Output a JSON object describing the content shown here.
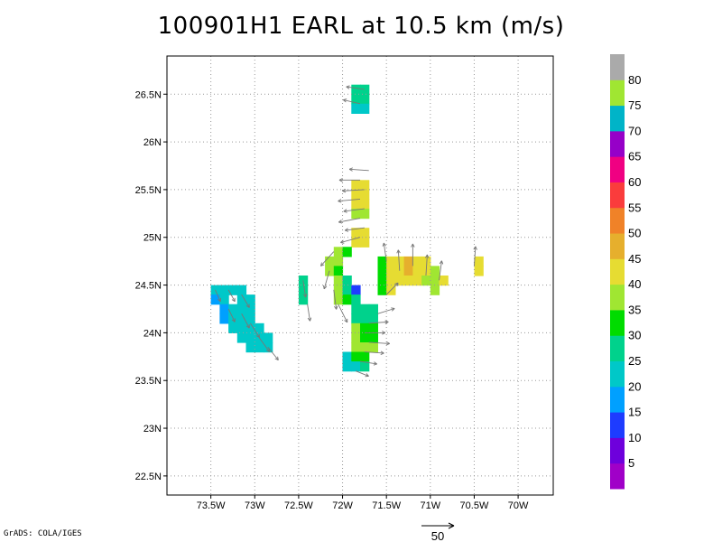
{
  "title": "100901H1 EARL at 10.5 km (m/s)",
  "credit": "GrADS: COLA/IGES",
  "map": {
    "lon_range": [
      -74.0,
      -69.6
    ],
    "lat_range": [
      22.3,
      26.9
    ],
    "x_ticks": [
      {
        "v": -73.5,
        "label": "73.5W"
      },
      {
        "v": -73.0,
        "label": "73W"
      },
      {
        "v": -72.5,
        "label": "72.5W"
      },
      {
        "v": -72.0,
        "label": "72W"
      },
      {
        "v": -71.5,
        "label": "71.5W"
      },
      {
        "v": -71.0,
        "label": "71W"
      },
      {
        "v": -70.5,
        "label": "70.5W"
      },
      {
        "v": -70.0,
        "label": "70W"
      }
    ],
    "y_ticks": [
      {
        "v": 22.5,
        "label": "22.5N"
      },
      {
        "v": 23.0,
        "label": "23N"
      },
      {
        "v": 23.5,
        "label": "23.5N"
      },
      {
        "v": 24.0,
        "label": "24N"
      },
      {
        "v": 24.5,
        "label": "24.5N"
      },
      {
        "v": 25.0,
        "label": "25N"
      },
      {
        "v": 25.5,
        "label": "25.5N"
      },
      {
        "v": 26.0,
        "label": "26N"
      },
      {
        "v": 26.5,
        "label": "26.5N"
      }
    ],
    "grid": "dotted"
  },
  "colorbar": {
    "colors": [
      "#a000c8",
      "#6e00dc",
      "#1e3cff",
      "#00a0ff",
      "#00c8c8",
      "#00d28c",
      "#00dc00",
      "#a0e632",
      "#e6dc32",
      "#e6af2d",
      "#f08228",
      "#fa3c3c",
      "#f00082",
      "#9600c8",
      "#00b4c8",
      "#a0e632",
      "#aaaaaa"
    ],
    "labels": [
      "5",
      "10",
      "15",
      "20",
      "25",
      "30",
      "35",
      "40",
      "45",
      "50",
      "55",
      "60",
      "65",
      "70",
      "75",
      "80"
    ]
  },
  "scale_vector": {
    "label": "50"
  },
  "wind_speed_cells": [
    {
      "lon": -73.45,
      "lat": 24.45,
      "spd": 20
    },
    {
      "lon": -73.35,
      "lat": 24.45,
      "spd": 20
    },
    {
      "lon": -73.25,
      "lat": 24.45,
      "spd": 20
    },
    {
      "lon": -73.15,
      "lat": 24.45,
      "spd": 20
    },
    {
      "lon": -73.45,
      "lat": 24.35,
      "spd": 15
    },
    {
      "lon": -73.35,
      "lat": 24.35,
      "spd": 20
    },
    {
      "lon": -73.15,
      "lat": 24.35,
      "spd": 20
    },
    {
      "lon": -73.05,
      "lat": 24.35,
      "spd": 20
    },
    {
      "lon": -73.35,
      "lat": 24.25,
      "spd": 15
    },
    {
      "lon": -73.25,
      "lat": 24.25,
      "spd": 20
    },
    {
      "lon": -73.15,
      "lat": 24.25,
      "spd": 20
    },
    {
      "lon": -73.05,
      "lat": 24.25,
      "spd": 20
    },
    {
      "lon": -73.35,
      "lat": 24.15,
      "spd": 15
    },
    {
      "lon": -73.25,
      "lat": 24.15,
      "spd": 20
    },
    {
      "lon": -73.15,
      "lat": 24.15,
      "spd": 20
    },
    {
      "lon": -73.05,
      "lat": 24.15,
      "spd": 20
    },
    {
      "lon": -73.25,
      "lat": 24.05,
      "spd": 20
    },
    {
      "lon": -73.15,
      "lat": 24.05,
      "spd": 20
    },
    {
      "lon": -73.05,
      "lat": 24.05,
      "spd": 20
    },
    {
      "lon": -72.95,
      "lat": 24.05,
      "spd": 20
    },
    {
      "lon": -73.15,
      "lat": 23.95,
      "spd": 20
    },
    {
      "lon": -73.05,
      "lat": 23.95,
      "spd": 20
    },
    {
      "lon": -72.95,
      "lat": 23.95,
      "spd": 20
    },
    {
      "lon": -72.85,
      "lat": 23.95,
      "spd": 20
    },
    {
      "lon": -73.05,
      "lat": 23.85,
      "spd": 20
    },
    {
      "lon": -72.95,
      "lat": 23.85,
      "spd": 20
    },
    {
      "lon": -72.85,
      "lat": 23.85,
      "spd": 20
    },
    {
      "lon": -72.45,
      "lat": 24.55,
      "spd": 25
    },
    {
      "lon": -72.45,
      "lat": 24.45,
      "spd": 25
    },
    {
      "lon": -72.45,
      "lat": 24.35,
      "spd": 25
    },
    {
      "lon": -71.85,
      "lat": 26.55,
      "spd": 25
    },
    {
      "lon": -71.75,
      "lat": 26.55,
      "spd": 25
    },
    {
      "lon": -71.85,
      "lat": 26.45,
      "spd": 25
    },
    {
      "lon": -71.75,
      "lat": 26.45,
      "spd": 25
    },
    {
      "lon": -71.85,
      "lat": 26.35,
      "spd": 20
    },
    {
      "lon": -71.75,
      "lat": 26.35,
      "spd": 20
    },
    {
      "lon": -71.85,
      "lat": 25.55,
      "spd": 40
    },
    {
      "lon": -71.75,
      "lat": 25.55,
      "spd": 40
    },
    {
      "lon": -71.85,
      "lat": 25.45,
      "spd": 40
    },
    {
      "lon": -71.75,
      "lat": 25.45,
      "spd": 40
    },
    {
      "lon": -71.85,
      "lat": 25.35,
      "spd": 40
    },
    {
      "lon": -71.75,
      "lat": 25.35,
      "spd": 40
    },
    {
      "lon": -71.85,
      "lat": 25.25,
      "spd": 35
    },
    {
      "lon": -71.75,
      "lat": 25.25,
      "spd": 35
    },
    {
      "lon": -71.85,
      "lat": 25.05,
      "spd": 40
    },
    {
      "lon": -71.75,
      "lat": 25.05,
      "spd": 40
    },
    {
      "lon": -71.85,
      "lat": 24.95,
      "spd": 40
    },
    {
      "lon": -71.75,
      "lat": 24.95,
      "spd": 40
    },
    {
      "lon": -72.15,
      "lat": 24.75,
      "spd": 35
    },
    {
      "lon": -72.05,
      "lat": 24.75,
      "spd": 35
    },
    {
      "lon": -72.05,
      "lat": 24.85,
      "spd": 35
    },
    {
      "lon": -71.95,
      "lat": 24.85,
      "spd": 30
    },
    {
      "lon": -72.15,
      "lat": 24.65,
      "spd": 35
    },
    {
      "lon": -72.05,
      "lat": 24.65,
      "spd": 30
    },
    {
      "lon": -72.05,
      "lat": 24.55,
      "spd": 35
    },
    {
      "lon": -71.95,
      "lat": 24.55,
      "spd": 25
    },
    {
      "lon": -72.05,
      "lat": 24.45,
      "spd": 35
    },
    {
      "lon": -71.95,
      "lat": 24.45,
      "spd": 25
    },
    {
      "lon": -72.05,
      "lat": 24.35,
      "spd": 35
    },
    {
      "lon": -71.95,
      "lat": 24.35,
      "spd": 30
    },
    {
      "lon": -71.85,
      "lat": 24.45,
      "spd": 10
    },
    {
      "lon": -71.85,
      "lat": 24.35,
      "spd": 25
    },
    {
      "lon": -71.55,
      "lat": 24.75,
      "spd": 30
    },
    {
      "lon": -71.45,
      "lat": 24.75,
      "spd": 40
    },
    {
      "lon": -71.55,
      "lat": 24.65,
      "spd": 30
    },
    {
      "lon": -71.45,
      "lat": 24.65,
      "spd": 40
    },
    {
      "lon": -71.55,
      "lat": 24.55,
      "spd": 30
    },
    {
      "lon": -71.45,
      "lat": 24.55,
      "spd": 40
    },
    {
      "lon": -71.55,
      "lat": 24.45,
      "spd": 30
    },
    {
      "lon": -71.45,
      "lat": 24.45,
      "spd": 40
    },
    {
      "lon": -71.35,
      "lat": 24.75,
      "spd": 40
    },
    {
      "lon": -71.25,
      "lat": 24.75,
      "spd": 45
    },
    {
      "lon": -71.35,
      "lat": 24.65,
      "spd": 40
    },
    {
      "lon": -71.25,
      "lat": 24.65,
      "spd": 45
    },
    {
      "lon": -71.35,
      "lat": 24.55,
      "spd": 40
    },
    {
      "lon": -71.25,
      "lat": 24.55,
      "spd": 40
    },
    {
      "lon": -71.15,
      "lat": 24.75,
      "spd": 40
    },
    {
      "lon": -71.05,
      "lat": 24.75,
      "spd": 40
    },
    {
      "lon": -71.15,
      "lat": 24.65,
      "spd": 40
    },
    {
      "lon": -71.05,
      "lat": 24.65,
      "spd": 40
    },
    {
      "lon": -71.15,
      "lat": 24.55,
      "spd": 40
    },
    {
      "lon": -71.05,
      "lat": 24.55,
      "spd": 35
    },
    {
      "lon": -70.95,
      "lat": 24.65,
      "spd": 35
    },
    {
      "lon": -70.95,
      "lat": 24.55,
      "spd": 35
    },
    {
      "lon": -70.95,
      "lat": 24.45,
      "spd": 35
    },
    {
      "lon": -70.85,
      "lat": 24.55,
      "spd": 40
    },
    {
      "lon": -70.45,
      "lat": 24.75,
      "spd": 40
    },
    {
      "lon": -70.45,
      "lat": 24.65,
      "spd": 40
    },
    {
      "lon": -71.85,
      "lat": 24.25,
      "spd": 25
    },
    {
      "lon": -71.75,
      "lat": 24.25,
      "spd": 25
    },
    {
      "lon": -71.65,
      "lat": 24.25,
      "spd": 25
    },
    {
      "lon": -71.85,
      "lat": 24.15,
      "spd": 25
    },
    {
      "lon": -71.75,
      "lat": 24.15,
      "spd": 25
    },
    {
      "lon": -71.65,
      "lat": 24.15,
      "spd": 25
    },
    {
      "lon": -71.85,
      "lat": 24.05,
      "spd": 35
    },
    {
      "lon": -71.75,
      "lat": 24.05,
      "spd": 30
    },
    {
      "lon": -71.65,
      "lat": 24.05,
      "spd": 30
    },
    {
      "lon": -71.85,
      "lat": 23.95,
      "spd": 35
    },
    {
      "lon": -71.75,
      "lat": 23.95,
      "spd": 30
    },
    {
      "lon": -71.65,
      "lat": 23.95,
      "spd": 30
    },
    {
      "lon": -71.85,
      "lat": 23.85,
      "spd": 35
    },
    {
      "lon": -71.75,
      "lat": 23.85,
      "spd": 35
    },
    {
      "lon": -71.65,
      "lat": 23.85,
      "spd": 35
    },
    {
      "lon": -71.95,
      "lat": 23.75,
      "spd": 20
    },
    {
      "lon": -71.85,
      "lat": 23.75,
      "spd": 30
    },
    {
      "lon": -71.75,
      "lat": 23.75,
      "spd": 30
    },
    {
      "lon": -71.95,
      "lat": 23.65,
      "spd": 20
    },
    {
      "lon": -71.85,
      "lat": 23.65,
      "spd": 20
    },
    {
      "lon": -71.75,
      "lat": 23.65,
      "spd": 25
    }
  ],
  "wind_vectors": [
    {
      "lon": -71.75,
      "lat": 26.55,
      "u": -28,
      "v": 4
    },
    {
      "lon": -71.8,
      "lat": 26.4,
      "u": -26,
      "v": 6
    },
    {
      "lon": -71.7,
      "lat": 25.7,
      "u": -30,
      "v": 2
    },
    {
      "lon": -71.8,
      "lat": 25.6,
      "u": -32,
      "v": 0
    },
    {
      "lon": -71.75,
      "lat": 25.5,
      "u": -34,
      "v": -2
    },
    {
      "lon": -71.8,
      "lat": 25.4,
      "u": -34,
      "v": -3
    },
    {
      "lon": -71.75,
      "lat": 25.3,
      "u": -32,
      "v": -4
    },
    {
      "lon": -71.8,
      "lat": 25.2,
      "u": -33,
      "v": -6
    },
    {
      "lon": -71.75,
      "lat": 25.1,
      "u": -30,
      "v": -4
    },
    {
      "lon": -71.8,
      "lat": 25.0,
      "u": -30,
      "v": -8
    },
    {
      "lon": -72.1,
      "lat": 24.85,
      "u": -20,
      "v": -22
    },
    {
      "lon": -72.15,
      "lat": 24.65,
      "u": -8,
      "v": -28
    },
    {
      "lon": -72.1,
      "lat": 24.45,
      "u": 4,
      "v": -30
    },
    {
      "lon": -72.05,
      "lat": 24.3,
      "u": 14,
      "v": -28
    },
    {
      "lon": -71.5,
      "lat": 24.75,
      "u": -4,
      "v": 28
    },
    {
      "lon": -71.35,
      "lat": 24.65,
      "u": -2,
      "v": 32
    },
    {
      "lon": -71.2,
      "lat": 24.7,
      "u": 0,
      "v": 34
    },
    {
      "lon": -71.05,
      "lat": 24.6,
      "u": 2,
      "v": 32
    },
    {
      "lon": -70.9,
      "lat": 24.55,
      "u": 4,
      "v": 30
    },
    {
      "lon": -70.5,
      "lat": 24.7,
      "u": 2,
      "v": 30
    },
    {
      "lon": -71.5,
      "lat": 24.4,
      "u": 18,
      "v": 18
    },
    {
      "lon": -71.6,
      "lat": 24.2,
      "u": 26,
      "v": 8
    },
    {
      "lon": -71.7,
      "lat": 24.1,
      "u": 30,
      "v": 2
    },
    {
      "lon": -71.75,
      "lat": 24.0,
      "u": 32,
      "v": 0
    },
    {
      "lon": -71.7,
      "lat": 23.9,
      "u": 32,
      "v": -2
    },
    {
      "lon": -71.75,
      "lat": 23.8,
      "u": 30,
      "v": -2
    },
    {
      "lon": -71.8,
      "lat": 23.7,
      "u": 26,
      "v": -4
    },
    {
      "lon": -71.85,
      "lat": 23.6,
      "u": 20,
      "v": -8
    },
    {
      "lon": -73.45,
      "lat": 24.45,
      "u": 8,
      "v": -18
    },
    {
      "lon": -73.3,
      "lat": 24.45,
      "u": 10,
      "v": -18
    },
    {
      "lon": -73.15,
      "lat": 24.4,
      "u": 12,
      "v": -20
    },
    {
      "lon": -73.3,
      "lat": 24.25,
      "u": 10,
      "v": -20
    },
    {
      "lon": -73.15,
      "lat": 24.2,
      "u": 12,
      "v": -22
    },
    {
      "lon": -73.05,
      "lat": 24.1,
      "u": 14,
      "v": -22
    },
    {
      "lon": -72.95,
      "lat": 23.95,
      "u": 16,
      "v": -22
    },
    {
      "lon": -72.85,
      "lat": 23.85,
      "u": 16,
      "v": -20
    },
    {
      "lon": -72.45,
      "lat": 24.55,
      "u": 4,
      "v": -26
    },
    {
      "lon": -72.4,
      "lat": 24.3,
      "u": 4,
      "v": -26
    }
  ]
}
